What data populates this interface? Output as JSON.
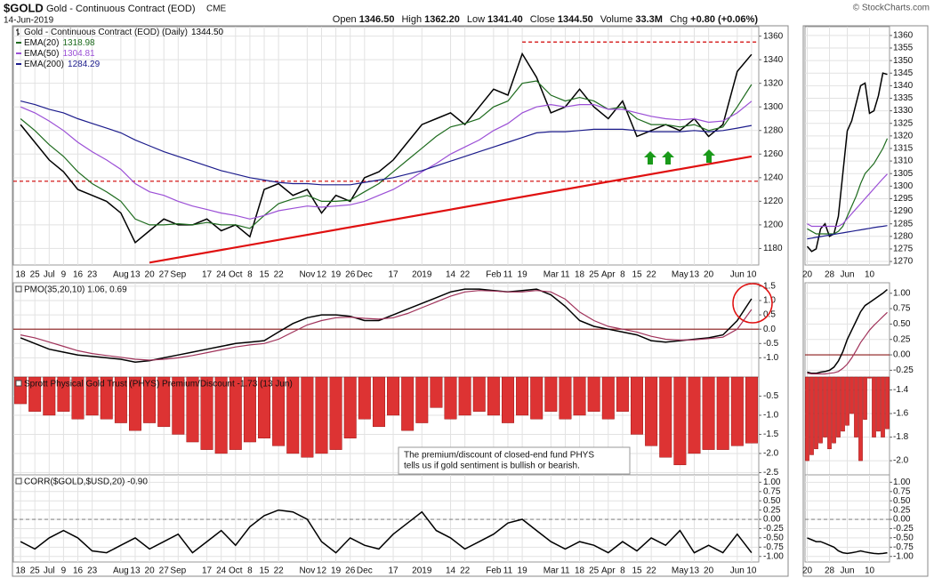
{
  "header": {
    "symbol": "$GOLD",
    "name": "Gold - Continuous Contract (EOD)",
    "exchange": "CME",
    "date": "14-Jun-2019",
    "quote": [
      {
        "label": "Open",
        "value": "1346.50"
      },
      {
        "label": "High",
        "value": "1362.20"
      },
      {
        "label": "Low",
        "value": "1341.40"
      },
      {
        "label": "Close",
        "value": "1344.50"
      },
      {
        "label": "Volume",
        "value": "33.3M"
      },
      {
        "label": "Chg",
        "value": "+0.80 (+0.06%)"
      }
    ],
    "watermark": "© StockCharts.com"
  },
  "chart_data": [
    {
      "type": "line",
      "categories": [
        "18",
        "25",
        "Jul",
        "9",
        "16",
        "23",
        null,
        "Aug",
        "13",
        "20",
        "27",
        "Sep",
        null,
        "17",
        "24",
        "Oct",
        "8",
        "15",
        "22",
        null,
        "Nov",
        "12",
        "19",
        "26",
        "Dec",
        null,
        "17",
        null,
        "2019",
        null,
        "14",
        "22",
        null,
        "Feb",
        "11",
        "19",
        null,
        "Mar",
        "11",
        "18",
        "25",
        "Apr",
        "8",
        "15",
        "22",
        null,
        "May",
        "13",
        "20",
        null,
        "Jun",
        "10"
      ],
      "series": [
        {
          "name": "Gold - Continuous Contract (EOD) (Daily)",
          "legend_value": "1344.50",
          "color": "#000000",
          "values": [
            1285,
            1270,
            1255,
            1245,
            1230,
            1225,
            1220,
            1210,
            1185,
            1195,
            1205,
            1200,
            1200,
            1205,
            1195,
            1200,
            1190,
            1230,
            1235,
            1225,
            1230,
            1210,
            1225,
            1220,
            1240,
            1245,
            1255,
            1270,
            1285,
            1290,
            1295,
            1285,
            1300,
            1315,
            1310,
            1345,
            1325,
            1295,
            1300,
            1315,
            1300,
            1290,
            1305,
            1275,
            1280,
            1285,
            1280,
            1290,
            1275,
            1285,
            1330,
            1344.5
          ]
        },
        {
          "name": "EMA(20)",
          "legend_value": "1318.98",
          "color": "#1e6b1e",
          "values": [
            1290,
            1280,
            1268,
            1258,
            1245,
            1235,
            1228,
            1220,
            1205,
            1200,
            1200,
            1201,
            1200,
            1202,
            1200,
            1200,
            1197,
            1208,
            1218,
            1222,
            1225,
            1220,
            1220,
            1221,
            1228,
            1235,
            1245,
            1255,
            1265,
            1275,
            1283,
            1286,
            1290,
            1300,
            1305,
            1320,
            1322,
            1310,
            1305,
            1308,
            1305,
            1298,
            1300,
            1290,
            1285,
            1285,
            1283,
            1285,
            1280,
            1283,
            1300,
            1318.98
          ]
        },
        {
          "name": "EMA(50)",
          "legend_value": "1304.81",
          "color": "#9b4fd6",
          "values": [
            1300,
            1295,
            1288,
            1280,
            1270,
            1262,
            1255,
            1247,
            1235,
            1228,
            1225,
            1220,
            1216,
            1213,
            1210,
            1208,
            1205,
            1208,
            1212,
            1214,
            1216,
            1215,
            1216,
            1217,
            1220,
            1225,
            1230,
            1237,
            1245,
            1252,
            1260,
            1266,
            1272,
            1280,
            1286,
            1295,
            1300,
            1302,
            1300,
            1302,
            1302,
            1298,
            1298,
            1295,
            1292,
            1290,
            1289,
            1290,
            1287,
            1288,
            1295,
            1304.81
          ]
        },
        {
          "name": "EMA(200)",
          "legend_value": "1284.29",
          "color": "#1c1c8c",
          "values": [
            1305,
            1302,
            1298,
            1295,
            1290,
            1286,
            1282,
            1278,
            1272,
            1267,
            1262,
            1258,
            1254,
            1250,
            1246,
            1243,
            1240,
            1238,
            1236,
            1235,
            1235,
            1234,
            1234,
            1234,
            1236,
            1238,
            1240,
            1243,
            1246,
            1250,
            1254,
            1258,
            1262,
            1266,
            1270,
            1274,
            1278,
            1279,
            1279,
            1280,
            1281,
            1281,
            1281,
            1280,
            1279,
            1279,
            1279,
            1280,
            1279,
            1280,
            1282,
            1284.29
          ]
        }
      ],
      "ylim": [
        1166,
        1368
      ],
      "yticks": [
        1180,
        1200,
        1220,
        1240,
        1260,
        1280,
        1300,
        1320,
        1340,
        1360
      ],
      "grid": true,
      "hlines": [
        {
          "value": 1237,
          "color": "#d00000",
          "dash": true
        },
        {
          "value": 1355,
          "from": 35,
          "color": "#d00000",
          "dash": true
        }
      ],
      "trendline": {
        "from": [
          9,
          1168
        ],
        "to": [
          51,
          1258
        ],
        "color": "#e01010"
      }
    },
    {
      "type": "line",
      "title": "PMO(35,20,10) 1.06, 0.69",
      "series": [
        {
          "color": "#000000",
          "values": [
            -0.3,
            -0.5,
            -0.7,
            -0.8,
            -0.9,
            -0.95,
            -1.0,
            -1.05,
            -1.15,
            -1.1,
            -1.0,
            -0.9,
            -0.8,
            -0.7,
            -0.6,
            -0.5,
            -0.45,
            -0.4,
            -0.1,
            0.2,
            0.4,
            0.5,
            0.5,
            0.45,
            0.3,
            0.3,
            0.5,
            0.7,
            0.9,
            1.1,
            1.3,
            1.4,
            1.4,
            1.35,
            1.3,
            1.35,
            1.4,
            1.2,
            0.8,
            0.3,
            0.1,
            0.0,
            -0.1,
            -0.2,
            -0.4,
            -0.45,
            -0.4,
            -0.35,
            -0.3,
            -0.2,
            0.3,
            1.06
          ]
        },
        {
          "color": "#a0325a",
          "values": [
            -0.2,
            -0.3,
            -0.45,
            -0.6,
            -0.75,
            -0.85,
            -0.92,
            -0.98,
            -1.05,
            -1.08,
            -1.05,
            -1.0,
            -0.92,
            -0.82,
            -0.72,
            -0.62,
            -0.55,
            -0.5,
            -0.35,
            -0.1,
            0.15,
            0.3,
            0.4,
            0.42,
            0.38,
            0.35,
            0.4,
            0.55,
            0.75,
            0.95,
            1.15,
            1.3,
            1.35,
            1.33,
            1.3,
            1.3,
            1.35,
            1.3,
            1.05,
            0.6,
            0.3,
            0.1,
            0.0,
            -0.1,
            -0.25,
            -0.35,
            -0.38,
            -0.37,
            -0.33,
            -0.28,
            0.0,
            0.69
          ]
        }
      ],
      "ylim": [
        -1.67,
        1.62
      ],
      "yticks": [
        {
          "value": -1.0,
          "label": "-1.0"
        },
        -0.5,
        {
          "value": 0,
          "label": "0.0"
        },
        0.5,
        {
          "value": 1.0,
          "label": "1.0"
        },
        1.5
      ],
      "grid": true,
      "hlines": [
        {
          "value": 0,
          "color": "#8b1a1a"
        }
      ]
    },
    {
      "type": "bar",
      "title": "Sprott Physical Gold Trust (PHYS) Premium/Discount -1.73 (13 Jun)",
      "color": "#dd3333",
      "values": [
        -0.7,
        -0.9,
        -1.0,
        -0.9,
        -1.1,
        -1.0,
        -1.1,
        -1.2,
        -1.4,
        -1.2,
        -1.3,
        -1.5,
        -1.7,
        -1.9,
        -2.0,
        -1.9,
        -1.7,
        -1.6,
        -1.8,
        -2.0,
        -2.1,
        -2.0,
        -1.9,
        -1.6,
        -1.1,
        -1.3,
        -1.0,
        -1.4,
        -1.2,
        -0.8,
        -1.1,
        -1.0,
        -0.9,
        -1.0,
        -1.2,
        -1.0,
        -1.1,
        -0.9,
        -1.1,
        -1.0,
        -0.9,
        -1.1,
        -0.9,
        -1.5,
        -1.8,
        -2.1,
        -2.3,
        -2.0,
        -1.9,
        -1.9,
        -1.8,
        -1.73
      ],
      "ylim": [
        -2.56,
        0
      ],
      "yticks": [
        -2.5,
        {
          "value": -2.0,
          "label": "-2.0"
        },
        -1.5,
        {
          "value": -1.0,
          "label": "-1.0"
        },
        -0.5
      ],
      "grid": true,
      "note": [
        "The premium/discount of closed-end fund PHYS",
        "tells us if gold sentiment is bullish or bearish."
      ]
    },
    {
      "type": "line",
      "title": "CORR($GOLD,$USD,20) -0.90",
      "categories": [
        "18",
        "25",
        "Jul",
        "9",
        "16",
        "23",
        null,
        "Aug",
        "13",
        "20",
        "27",
        "Sep",
        null,
        "17",
        "24",
        "Oct",
        "8",
        "15",
        "22",
        null,
        "Nov",
        "12",
        "19",
        "26",
        "Dec",
        null,
        "17",
        null,
        "2019",
        null,
        "14",
        "22",
        null,
        "Feb",
        "11",
        "19",
        null,
        "Mar",
        "11",
        "18",
        "25",
        "Apr",
        "8",
        "15",
        "22",
        null,
        "May",
        "13",
        "20",
        null,
        "Jun",
        "10"
      ],
      "series": [
        {
          "color": "#000000",
          "values": [
            -0.6,
            -0.8,
            -0.5,
            -0.3,
            -0.5,
            -0.85,
            -0.9,
            -0.7,
            -0.5,
            -0.8,
            -0.6,
            -0.4,
            -0.9,
            -0.6,
            -0.3,
            -0.7,
            -0.2,
            0.1,
            0.25,
            0.2,
            0.0,
            -0.6,
            -0.9,
            -0.5,
            -0.7,
            -0.8,
            -0.4,
            -0.1,
            0.2,
            -0.3,
            -0.5,
            -0.8,
            -0.6,
            -0.4,
            -0.1,
            0.0,
            -0.3,
            -0.6,
            -0.8,
            -0.6,
            -0.7,
            -0.9,
            -0.6,
            -0.85,
            -0.5,
            -0.7,
            -0.3,
            -0.9,
            -0.7,
            -0.9,
            -0.4,
            -0.9
          ]
        }
      ],
      "ylim": [
        -1.15,
        1.2
      ],
      "yticks": [
        {
          "value": -1.0,
          "label": "-1.00"
        },
        {
          "value": -0.75,
          "label": "-0.75"
        },
        {
          "value": -0.5,
          "label": "-0.50"
        },
        {
          "value": -0.25,
          "label": "-0.25"
        },
        {
          "value": 0,
          "label": "0.00"
        },
        {
          "value": 0.25,
          "label": "0.25"
        },
        {
          "value": 0.5,
          "label": "0.50"
        },
        {
          "value": 0.75,
          "label": "0.75"
        },
        {
          "value": 1.0,
          "label": "1.00"
        }
      ],
      "grid": true,
      "hlines": [
        {
          "value": 0,
          "color": "#888888",
          "dash": true
        }
      ]
    },
    {
      "type": "line",
      "categories": [
        "20",
        null,
        null,
        null,
        null,
        "28",
        null,
        null,
        null,
        "Jun",
        null,
        null,
        null,
        null,
        "10",
        null,
        null,
        null,
        null
      ],
      "series": [
        {
          "color": "#000000",
          "values": [
            1276,
            1274,
            1275,
            1283,
            1285,
            1280,
            1281,
            1288,
            1305,
            1322,
            1326,
            1333,
            1340,
            1341,
            1329,
            1330,
            1336,
            1345,
            1344.5
          ]
        },
        {
          "color": "#1e6b1e",
          "values": [
            1283,
            1282,
            1281,
            1281,
            1281,
            1281,
            1281,
            1282,
            1284,
            1288,
            1292,
            1296,
            1301,
            1305,
            1307,
            1309,
            1312,
            1315,
            1318.98
          ]
        },
        {
          "color": "#9b4fd6",
          "values": [
            1285,
            1284,
            1284,
            1284,
            1284,
            1284,
            1284,
            1284,
            1285,
            1287,
            1289,
            1291,
            1293,
            1295,
            1297,
            1299,
            1301,
            1303,
            1304.81
          ]
        },
        {
          "color": "#1c1c8c",
          "values": [
            1279,
            1279.3,
            1279.6,
            1279.9,
            1280.2,
            1280.5,
            1280.8,
            1281.1,
            1281.4,
            1281.7,
            1282,
            1282.3,
            1282.6,
            1282.9,
            1283.2,
            1283.5,
            1283.8,
            1284,
            1284.29
          ]
        }
      ],
      "ylim": [
        1268.6,
        1363.5
      ],
      "yticks": [
        1270,
        1275,
        1280,
        1285,
        1290,
        1295,
        1300,
        1305,
        1310,
        1315,
        1320,
        1325,
        1330,
        1335,
        1340,
        1345,
        1350,
        1355,
        1360
      ],
      "grid": true
    },
    {
      "type": "line",
      "series": [
        {
          "color": "#000000",
          "values": [
            -0.28,
            -0.3,
            -0.3,
            -0.28,
            -0.27,
            -0.25,
            -0.2,
            -0.1,
            0.05,
            0.25,
            0.4,
            0.55,
            0.7,
            0.8,
            0.85,
            0.9,
            0.95,
            1.0,
            1.06
          ]
        },
        {
          "color": "#a0325a",
          "values": [
            -0.3,
            -0.31,
            -0.31,
            -0.31,
            -0.31,
            -0.3,
            -0.29,
            -0.27,
            -0.22,
            -0.15,
            -0.05,
            0.07,
            0.2,
            0.3,
            0.4,
            0.48,
            0.55,
            0.62,
            0.69
          ]
        }
      ],
      "ylim": [
        -0.36,
        1.17
      ],
      "yticks": [
        {
          "value": -0.25,
          "label": "-0.25"
        },
        {
          "value": 0,
          "label": "0.00"
        },
        {
          "value": 0.25,
          "label": "0.25"
        },
        {
          "value": 0.5,
          "label": "0.50"
        },
        {
          "value": 0.75,
          "label": "0.75"
        },
        {
          "value": 1.0,
          "label": "1.00"
        }
      ],
      "grid": true,
      "hlines": [
        {
          "value": 0,
          "color": "#8b1a1a"
        }
      ]
    },
    {
      "type": "bar",
      "color": "#dd3333",
      "values": [
        -2.0,
        -1.95,
        -1.9,
        -1.85,
        -1.8,
        -1.9,
        -1.85,
        -1.8,
        -1.75,
        -1.7,
        -1.6,
        -1.8,
        -2.0,
        -1.65,
        -1.3,
        -1.8,
        -1.75,
        -1.8,
        -1.73
      ],
      "ylim": [
        -2.12,
        -1.29
      ],
      "yticks": [
        {
          "value": -2.0,
          "label": "-2.0"
        },
        -1.8,
        -1.6,
        -1.4
      ],
      "grid": true
    },
    {
      "type": "line",
      "categories": [
        "20",
        null,
        null,
        null,
        null,
        "28",
        null,
        null,
        null,
        "Jun",
        null,
        null,
        null,
        null,
        "10",
        null,
        null,
        null,
        null
      ],
      "series": [
        {
          "color": "#000000",
          "values": [
            -0.5,
            -0.55,
            -0.6,
            -0.6,
            -0.65,
            -0.7,
            -0.75,
            -0.85,
            -0.9,
            -0.92,
            -0.9,
            -0.88,
            -0.85,
            -0.88,
            -0.9,
            -0.92,
            -0.93,
            -0.92,
            -0.9
          ]
        }
      ],
      "ylim": [
        -1.15,
        1.2
      ],
      "yticks": [
        {
          "value": -1.0,
          "label": "-1.00"
        },
        {
          "value": -0.75,
          "label": "-0.75"
        },
        {
          "value": -0.5,
          "label": "-0.50"
        },
        {
          "value": -0.25,
          "label": "-0.25"
        },
        {
          "value": 0,
          "label": "0.00"
        },
        {
          "value": 0.25,
          "label": "0.25"
        },
        {
          "value": 0.5,
          "label": "0.50"
        },
        {
          "value": 0.75,
          "label": "0.75"
        },
        {
          "value": 1.0,
          "label": "1.00"
        }
      ],
      "grid": true,
      "hlines": [
        {
          "value": 0,
          "color": "#888888",
          "dash": true
        }
      ]
    }
  ]
}
